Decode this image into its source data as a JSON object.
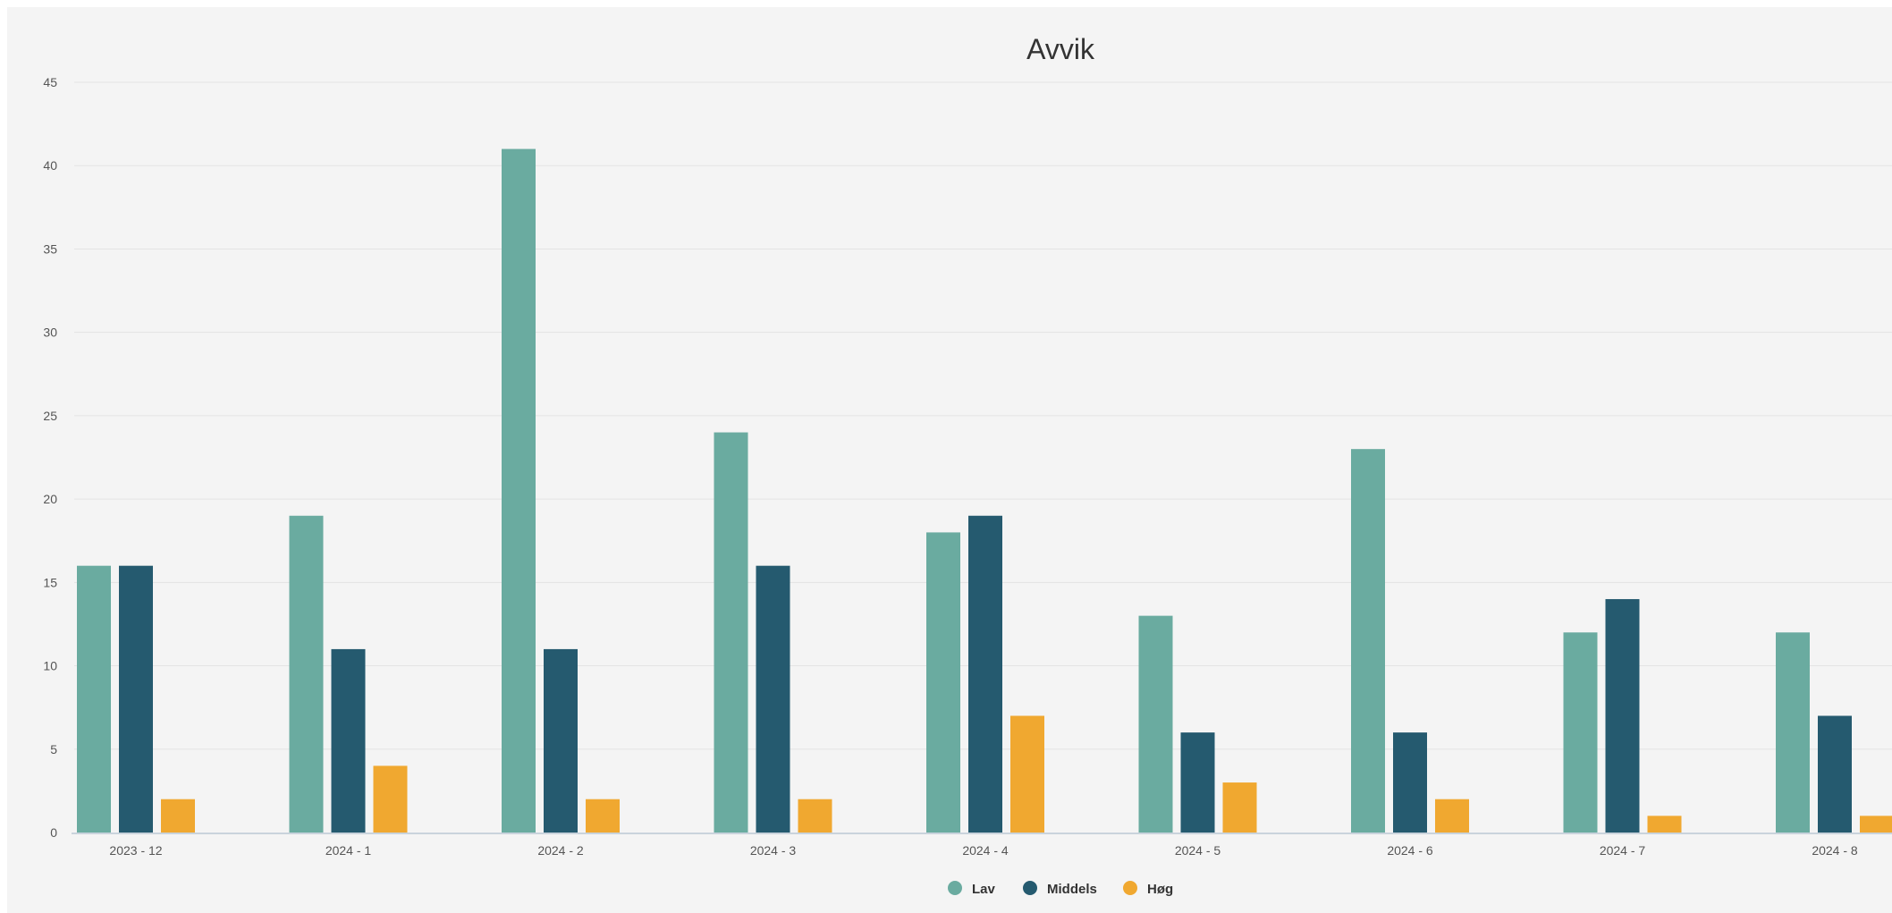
{
  "chart_data": {
    "type": "bar",
    "title": "Avvik",
    "xlabel": "",
    "ylabel": "",
    "ylim": [
      0,
      45
    ],
    "yticks": [
      0,
      5,
      10,
      15,
      20,
      25,
      30,
      35,
      40,
      45
    ],
    "grid": true,
    "legend_position": "bottom-center",
    "categories": [
      "2023 - 12",
      "2024 - 1",
      "2024 - 2",
      "2024 - 3",
      "2024 - 4",
      "2024 - 5",
      "2024 - 6",
      "2024 - 7",
      "2024 - 8"
    ],
    "series": [
      {
        "name": "Lav",
        "color": "#6aaba0",
        "values": [
          16,
          19,
          41,
          24,
          18,
          13,
          23,
          12,
          12
        ]
      },
      {
        "name": "Middels",
        "color": "#255a6f",
        "values": [
          16,
          11,
          11,
          16,
          19,
          6,
          6,
          14,
          7
        ]
      },
      {
        "name": "Høg",
        "color": "#f0a830",
        "values": [
          2,
          4,
          2,
          2,
          7,
          3,
          2,
          1,
          1
        ]
      }
    ]
  }
}
